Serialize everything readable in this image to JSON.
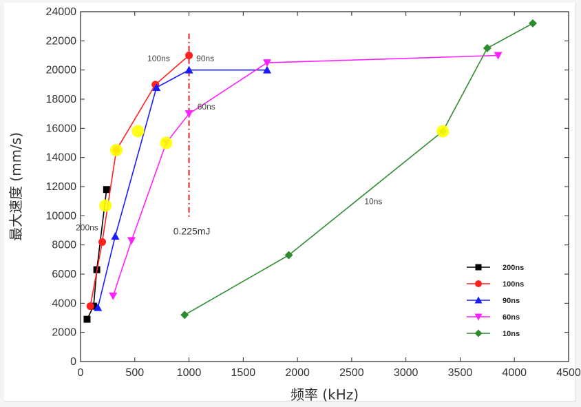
{
  "chart_data": {
    "type": "line",
    "title": "",
    "xlabel": "频率 (kHz)",
    "ylabel": "最大速度 (mm/s)",
    "xlim": [
      0,
      4500
    ],
    "ylim": [
      0,
      24000
    ],
    "xticks": [
      0,
      500,
      1000,
      1500,
      2000,
      2500,
      3000,
      3500,
      4000,
      4500
    ],
    "yticks": [
      0,
      2000,
      4000,
      6000,
      8000,
      10000,
      12000,
      14000,
      16000,
      18000,
      20000,
      22000,
      24000
    ],
    "grid": false,
    "legend_position": "bottom-right",
    "series": [
      {
        "name": "200ns",
        "color": "#000000",
        "marker": "square",
        "x": [
          60,
          120,
          150,
          240
        ],
        "y": [
          2900,
          3800,
          6300,
          11800
        ]
      },
      {
        "name": "100ns",
        "color": "#ff2020",
        "marker": "circle",
        "x": [
          90,
          200,
          330,
          690,
          1000
        ],
        "y": [
          3800,
          8200,
          14500,
          19000,
          21000
        ]
      },
      {
        "name": "90ns",
        "color": "#1a1aff",
        "marker": "triangle-up",
        "x": [
          160,
          320,
          700,
          1000,
          1720
        ],
        "y": [
          3700,
          8600,
          18800,
          20000,
          20000
        ]
      },
      {
        "name": "60ns",
        "color": "#ff20ff",
        "marker": "triangle-down",
        "x": [
          300,
          470,
          790,
          1000,
          1720,
          3850
        ],
        "y": [
          4500,
          8300,
          15000,
          17000,
          20500,
          21000
        ]
      },
      {
        "name": "10ns",
        "color": "#2e8b2e",
        "marker": "diamond",
        "x": [
          960,
          1920,
          3340,
          3750,
          4170
        ],
        "y": [
          3200,
          7300,
          15800,
          21500,
          23200
        ]
      }
    ],
    "highlight_points": {
      "color": "#ffff00",
      "points": [
        {
          "x": 230,
          "y": 10700
        },
        {
          "x": 330,
          "y": 14500
        },
        {
          "x": 530,
          "y": 15800
        },
        {
          "x": 790,
          "y": 15000
        },
        {
          "x": 3340,
          "y": 15800
        }
      ]
    },
    "reference_line": {
      "x": 1000,
      "y_from": 9800,
      "y_to": 22500,
      "color": "#e02020",
      "label": "0.225mJ"
    },
    "annotations": [
      {
        "text": "100ns",
        "x": 720,
        "y": 20600
      },
      {
        "text": "90ns",
        "x": 1150,
        "y": 20600
      },
      {
        "text": "60ns",
        "x": 1160,
        "y": 17300
      },
      {
        "text": "200ns",
        "x": 60,
        "y": 9000
      },
      {
        "text": "10ns",
        "x": 2700,
        "y": 10800
      }
    ]
  }
}
